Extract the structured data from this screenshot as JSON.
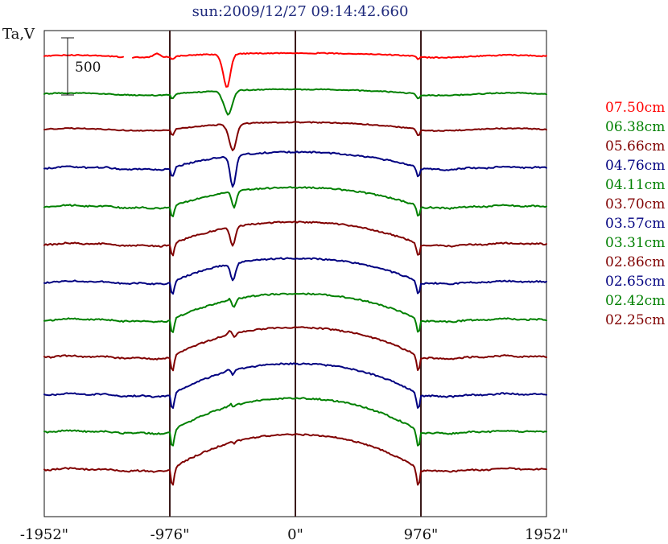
{
  "chart_data": {
    "type": "line",
    "title": "sun:2009/12/27 09:14:42.660",
    "ylabel": "Ta,V",
    "x_ticks": [
      "-1952\"",
      "-976\"",
      "0\"",
      "976\"",
      "1952\""
    ],
    "xlim": [
      -1952,
      1952
    ],
    "vertical_markers": [
      -976,
      0,
      976
    ],
    "scale_bar": {
      "label": "500",
      "value": 500
    },
    "legend_placement": "right",
    "grid": false,
    "series": [
      {
        "name": "07.50cm",
        "color": "#ff0000",
        "baseline": 70,
        "amp": 6,
        "disk_amp": 4,
        "limb": 4,
        "spot_depth": 45,
        "spot_x": -536,
        "spot_w": 40,
        "spot_bump": 6
      },
      {
        "name": "06.38cm",
        "color": "#008000",
        "baseline": 117,
        "amp": 8,
        "disk_amp": 6,
        "limb": 6,
        "spot_depth": 32,
        "spot_x": -526,
        "spot_w": 46,
        "spot_bump": 4
      },
      {
        "name": "05.66cm",
        "color": "#800000",
        "baseline": 161,
        "amp": 10,
        "disk_amp": 9,
        "limb": 8,
        "spot_depth": 36,
        "spot_x": -490,
        "spot_w": 40,
        "spot_bump": 5
      },
      {
        "name": "04.76cm",
        "color": "#000080",
        "baseline": 209,
        "amp": 10,
        "disk_amp": 20,
        "limb": 12,
        "spot_depth": 42,
        "spot_x": -488,
        "spot_w": 32,
        "spot_bump": 6
      },
      {
        "name": "04.11cm",
        "color": "#008000",
        "baseline": 257,
        "amp": 12,
        "disk_amp": 24,
        "limb": 13,
        "spot_depth": 22,
        "spot_x": -478,
        "spot_w": 26,
        "spot_bump": 3
      },
      {
        "name": "03.70cm",
        "color": "#800000",
        "baseline": 304,
        "amp": 12,
        "disk_amp": 28,
        "limb": 15,
        "spot_depth": 26,
        "spot_x": -490,
        "spot_w": 30,
        "spot_bump": 5
      },
      {
        "name": "03.57cm",
        "color": "#000080",
        "baseline": 351,
        "amp": 12,
        "disk_amp": 30,
        "limb": 16,
        "spot_depth": 24,
        "spot_x": -488,
        "spot_w": 28,
        "spot_bump": 4
      },
      {
        "name": "03.31cm",
        "color": "#008000",
        "baseline": 398,
        "amp": 14,
        "disk_amp": 33,
        "limb": 17,
        "spot_depth": 12,
        "spot_x": -480,
        "spot_w": 20,
        "spot_bump": 3
      },
      {
        "name": "02.86cm",
        "color": "#800000",
        "baseline": 444,
        "amp": 16,
        "disk_amp": 37,
        "limb": 19,
        "spot_depth": 8,
        "spot_x": -480,
        "spot_w": 18,
        "spot_bump": 6
      },
      {
        "name": "02.65cm",
        "color": "#000080",
        "baseline": 491,
        "amp": 16,
        "disk_amp": 39,
        "limb": 19,
        "spot_depth": 8,
        "spot_x": -488,
        "spot_w": 18,
        "spot_bump": 4
      },
      {
        "name": "02.42cm",
        "color": "#008000",
        "baseline": 537,
        "amp": 16,
        "disk_amp": 42,
        "limb": 20,
        "spot_depth": 4,
        "spot_x": -480,
        "spot_w": 14,
        "spot_bump": 3
      },
      {
        "name": "02.25cm",
        "color": "#800000",
        "baseline": 584,
        "amp": 16,
        "disk_amp": 44,
        "limb": 22,
        "spot_depth": 3,
        "spot_x": -480,
        "spot_w": 12,
        "spot_bump": 2
      }
    ]
  }
}
